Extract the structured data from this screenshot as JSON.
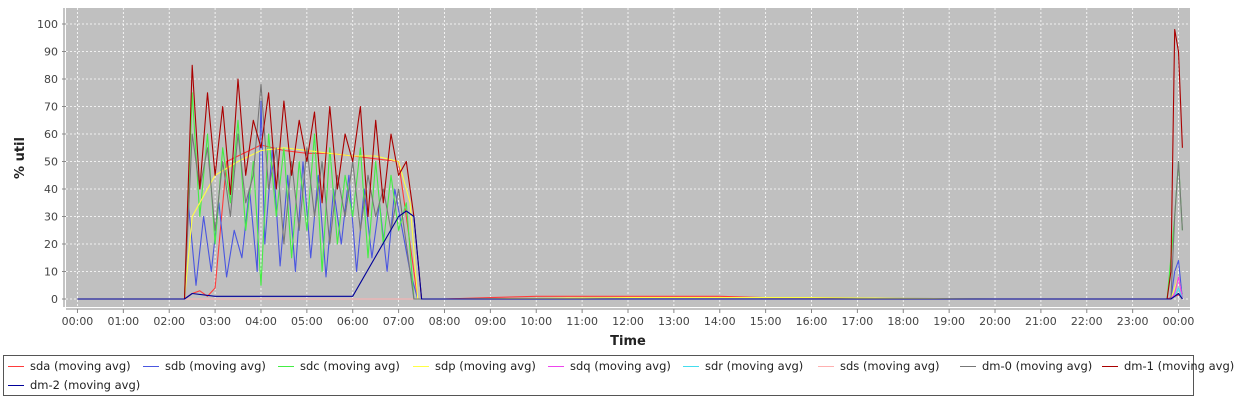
{
  "chart_data": {
    "type": "line",
    "title": "",
    "xlabel": "Time",
    "ylabel": "% util",
    "ylim": [
      0,
      100
    ],
    "xlim": [
      0,
      24.25
    ],
    "y_ticks": [
      0,
      10,
      20,
      30,
      40,
      50,
      60,
      70,
      80,
      90,
      100
    ],
    "x_ticks": [
      "00:00",
      "01:00",
      "02:00",
      "03:00",
      "04:00",
      "05:00",
      "06:00",
      "07:00",
      "08:00",
      "09:00",
      "10:00",
      "11:00",
      "12:00",
      "13:00",
      "14:00",
      "15:00",
      "16:00",
      "17:00",
      "18:00",
      "19:00",
      "20:00",
      "21:00",
      "22:00",
      "23:00",
      "00:00"
    ],
    "grid": true,
    "legend_position": "bottom",
    "plot_background": "#c0c0c0",
    "series": [
      {
        "name": "sda (moving avg)",
        "color": "#ff3b3b",
        "x": [
          "00:00",
          "02:20",
          "02:30",
          "02:40",
          "02:50",
          "03:00",
          "03:15",
          "03:30",
          "04:00",
          "04:30",
          "05:00",
          "05:30",
          "06:00",
          "06:30",
          "07:00",
          "07:15",
          "07:25",
          "08:00",
          "09:00",
          "10:00",
          "11:00",
          "12:00",
          "13:00",
          "14:00",
          "15:00",
          "16:00",
          "17:00",
          "18:00",
          "20:00",
          "22:00",
          "23:45",
          "23:55",
          "00:05"
        ],
        "y": [
          0,
          0,
          2,
          3,
          1,
          4,
          50,
          52,
          56,
          54,
          53,
          53,
          52,
          51,
          50,
          20,
          0,
          0,
          0.5,
          1,
          1,
          1,
          1,
          1,
          0.5,
          0.5,
          0.3,
          0,
          0,
          0,
          0,
          1,
          2
        ]
      },
      {
        "name": "sdb (moving avg)",
        "color": "#4a56e0",
        "x": [
          "00:00",
          "02:20",
          "02:25",
          "02:35",
          "02:45",
          "02:55",
          "03:05",
          "03:15",
          "03:25",
          "03:35",
          "03:45",
          "03:55",
          "04:00",
          "04:05",
          "04:15",
          "04:25",
          "04:35",
          "04:45",
          "04:55",
          "05:05",
          "05:15",
          "05:25",
          "05:35",
          "05:45",
          "05:55",
          "06:05",
          "06:15",
          "06:25",
          "06:35",
          "06:45",
          "06:55",
          "07:05",
          "07:15",
          "07:25",
          "08:00",
          "12:00",
          "16:00",
          "20:00",
          "23:50",
          "23:55",
          "00:00",
          "00:05"
        ],
        "y": [
          0,
          0,
          35,
          5,
          30,
          10,
          35,
          8,
          25,
          15,
          40,
          10,
          72,
          20,
          55,
          12,
          45,
          10,
          50,
          15,
          45,
          8,
          40,
          20,
          45,
          10,
          40,
          15,
          35,
          10,
          40,
          25,
          10,
          0,
          0,
          0.5,
          0.5,
          0,
          0,
          10,
          14,
          0
        ]
      },
      {
        "name": "sdc (moving avg)",
        "color": "#44ee44",
        "x": [
          "00:00",
          "02:20",
          "02:30",
          "02:40",
          "02:50",
          "03:00",
          "03:10",
          "03:20",
          "03:30",
          "03:40",
          "03:50",
          "04:00",
          "04:10",
          "04:20",
          "04:30",
          "04:40",
          "04:50",
          "05:00",
          "05:10",
          "05:20",
          "05:30",
          "05:40",
          "05:50",
          "06:00",
          "06:10",
          "06:20",
          "06:30",
          "06:40",
          "06:50",
          "07:00",
          "07:10",
          "07:20",
          "08:00",
          "16:00",
          "23:45",
          "23:55",
          "00:00",
          "00:05"
        ],
        "y": [
          0,
          0,
          75,
          30,
          60,
          20,
          55,
          35,
          65,
          25,
          50,
          5,
          60,
          30,
          55,
          15,
          50,
          25,
          60,
          10,
          55,
          20,
          45,
          30,
          55,
          15,
          50,
          20,
          45,
          25,
          35,
          0,
          0,
          0,
          0,
          30,
          50,
          25
        ]
      },
      {
        "name": "sdp (moving avg)",
        "color": "#ffff44",
        "x": [
          "00:00",
          "02:20",
          "02:30",
          "03:00",
          "03:30",
          "04:00",
          "04:30",
          "05:00",
          "05:30",
          "06:00",
          "06:30",
          "07:00",
          "07:15",
          "07:25",
          "08:00",
          "12:00",
          "16:00",
          "20:00",
          "23:50",
          "00:00",
          "00:05"
        ],
        "y": [
          0,
          0,
          30,
          45,
          50,
          54,
          55,
          54,
          53,
          52,
          52,
          50,
          35,
          0,
          0,
          0.5,
          0.5,
          0,
          0,
          8,
          0
        ]
      },
      {
        "name": "sdq (moving avg)",
        "color": "#ee44ee",
        "x": [
          "00:00",
          "12:00",
          "23:50",
          "23:55",
          "00:00",
          "00:05"
        ],
        "y": [
          0,
          0,
          0,
          2,
          8,
          0
        ]
      },
      {
        "name": "sdr (moving avg)",
        "color": "#44ddee",
        "x": [
          "00:00",
          "12:00",
          "23:50",
          "23:55",
          "00:00",
          "00:05"
        ],
        "y": [
          0,
          0,
          0,
          1,
          4,
          0
        ]
      },
      {
        "name": "sds (moving avg)",
        "color": "#ffb0b0",
        "x": [
          "00:00",
          "02:20",
          "07:20",
          "12:00",
          "23:50",
          "00:00",
          "00:05"
        ],
        "y": [
          0,
          0,
          0,
          0,
          0,
          2,
          0
        ]
      },
      {
        "name": "dm-0 (moving avg)",
        "color": "#777777",
        "x": [
          "00:00",
          "02:20",
          "02:30",
          "02:40",
          "02:50",
          "03:00",
          "03:10",
          "03:20",
          "03:30",
          "03:40",
          "03:50",
          "04:00",
          "04:10",
          "04:20",
          "04:30",
          "04:40",
          "04:50",
          "05:00",
          "05:10",
          "05:20",
          "05:30",
          "05:40",
          "05:50",
          "06:00",
          "06:10",
          "06:20",
          "06:30",
          "06:40",
          "06:50",
          "07:00",
          "07:10",
          "07:20",
          "08:00",
          "12:00",
          "23:50",
          "23:55",
          "00:00",
          "00:05"
        ],
        "y": [
          0,
          0,
          60,
          40,
          55,
          25,
          50,
          30,
          60,
          35,
          45,
          78,
          40,
          55,
          20,
          50,
          25,
          55,
          30,
          50,
          20,
          45,
          30,
          50,
          25,
          45,
          30,
          40,
          25,
          40,
          20,
          0,
          0,
          0,
          0,
          30,
          50,
          25
        ]
      },
      {
        "name": "dm-1 (moving avg)",
        "color": "#aa0000",
        "x": [
          "00:00",
          "02:20",
          "02:30",
          "02:40",
          "02:50",
          "03:00",
          "03:10",
          "03:20",
          "03:30",
          "03:40",
          "03:50",
          "04:00",
          "04:10",
          "04:20",
          "04:30",
          "04:40",
          "04:50",
          "05:00",
          "05:10",
          "05:20",
          "05:30",
          "05:40",
          "05:50",
          "06:00",
          "06:10",
          "06:20",
          "06:30",
          "06:40",
          "06:50",
          "07:00",
          "07:10",
          "07:20",
          "07:30",
          "08:00",
          "12:00",
          "23:45",
          "23:50",
          "23:55",
          "00:00",
          "00:05"
        ],
        "y": [
          0,
          0,
          85,
          40,
          75,
          45,
          70,
          38,
          80,
          45,
          65,
          55,
          75,
          40,
          72,
          45,
          65,
          50,
          68,
          35,
          70,
          40,
          60,
          50,
          70,
          30,
          65,
          35,
          60,
          45,
          50,
          30,
          0,
          0,
          0,
          0,
          10,
          98,
          90,
          55
        ]
      },
      {
        "name": "dm-2 (moving avg)",
        "color": "#000099",
        "x": [
          "00:00",
          "02:20",
          "02:30",
          "03:00",
          "04:00",
          "05:00",
          "06:00",
          "07:00",
          "07:10",
          "07:20",
          "07:30",
          "08:00",
          "12:00",
          "23:50",
          "00:00",
          "00:05"
        ],
        "y": [
          0,
          0,
          2,
          1,
          1,
          1,
          1,
          30,
          32,
          30,
          0,
          0,
          0,
          0,
          2,
          0
        ]
      }
    ]
  },
  "legend": {
    "items": [
      {
        "label": "sda (moving avg)",
        "color": "#ff3b3b"
      },
      {
        "label": "sdb (moving avg)",
        "color": "#4a56e0"
      },
      {
        "label": "sdc (moving avg)",
        "color": "#44ee44"
      },
      {
        "label": "sdp (moving avg)",
        "color": "#ffff44"
      },
      {
        "label": "sdq (moving avg)",
        "color": "#ee44ee"
      },
      {
        "label": "sdr (moving avg)",
        "color": "#44ddee"
      },
      {
        "label": "sds (moving avg)",
        "color": "#ffb0b0"
      },
      {
        "label": "dm-0 (moving avg)",
        "color": "#777777"
      },
      {
        "label": "dm-1 (moving avg)",
        "color": "#aa0000"
      },
      {
        "label": "dm-2 (moving avg)",
        "color": "#000099"
      }
    ]
  }
}
